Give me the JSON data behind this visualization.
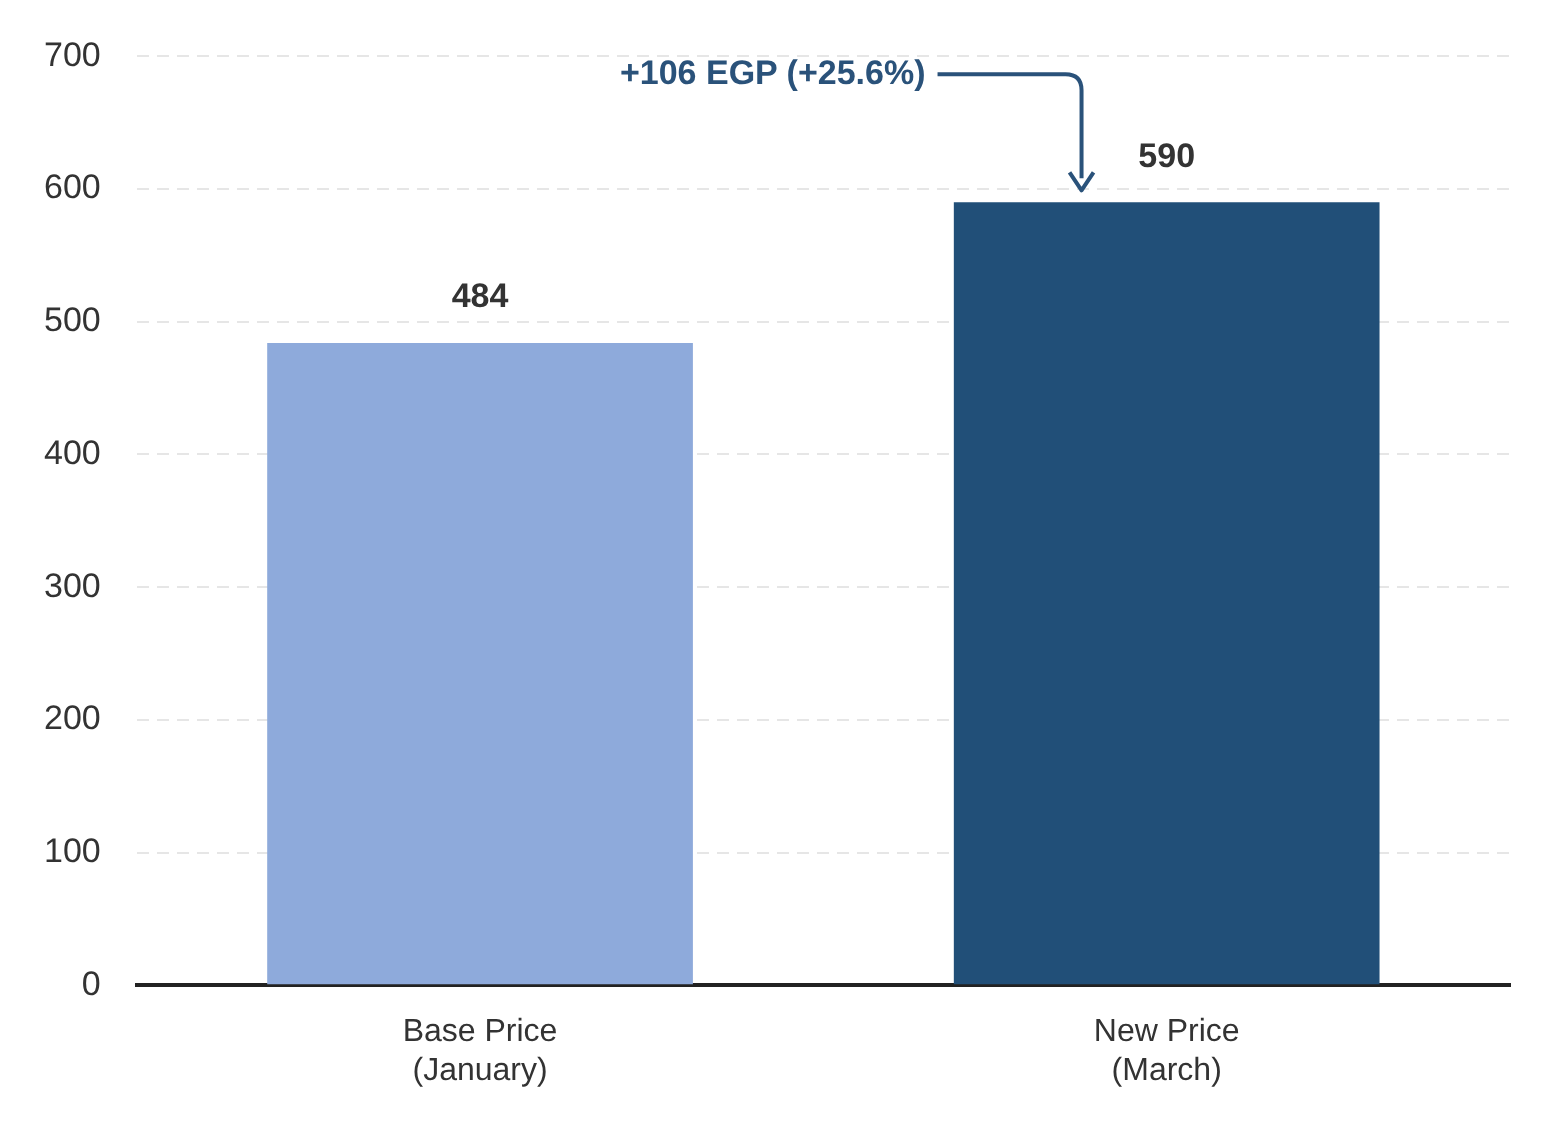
{
  "chart_data": {
    "type": "bar",
    "categories": [
      "Base Price\n(January)",
      "New Price\n(March)"
    ],
    "values": [
      484,
      590
    ],
    "colors": [
      "#8eaadb",
      "#214f78"
    ],
    "ylim": [
      0,
      700
    ],
    "yticks": [
      0,
      100,
      200,
      300,
      400,
      500,
      600,
      700
    ],
    "grid": "y",
    "data_labels": true,
    "annotations": [
      "+106 EGP (+25.6%)"
    ]
  }
}
